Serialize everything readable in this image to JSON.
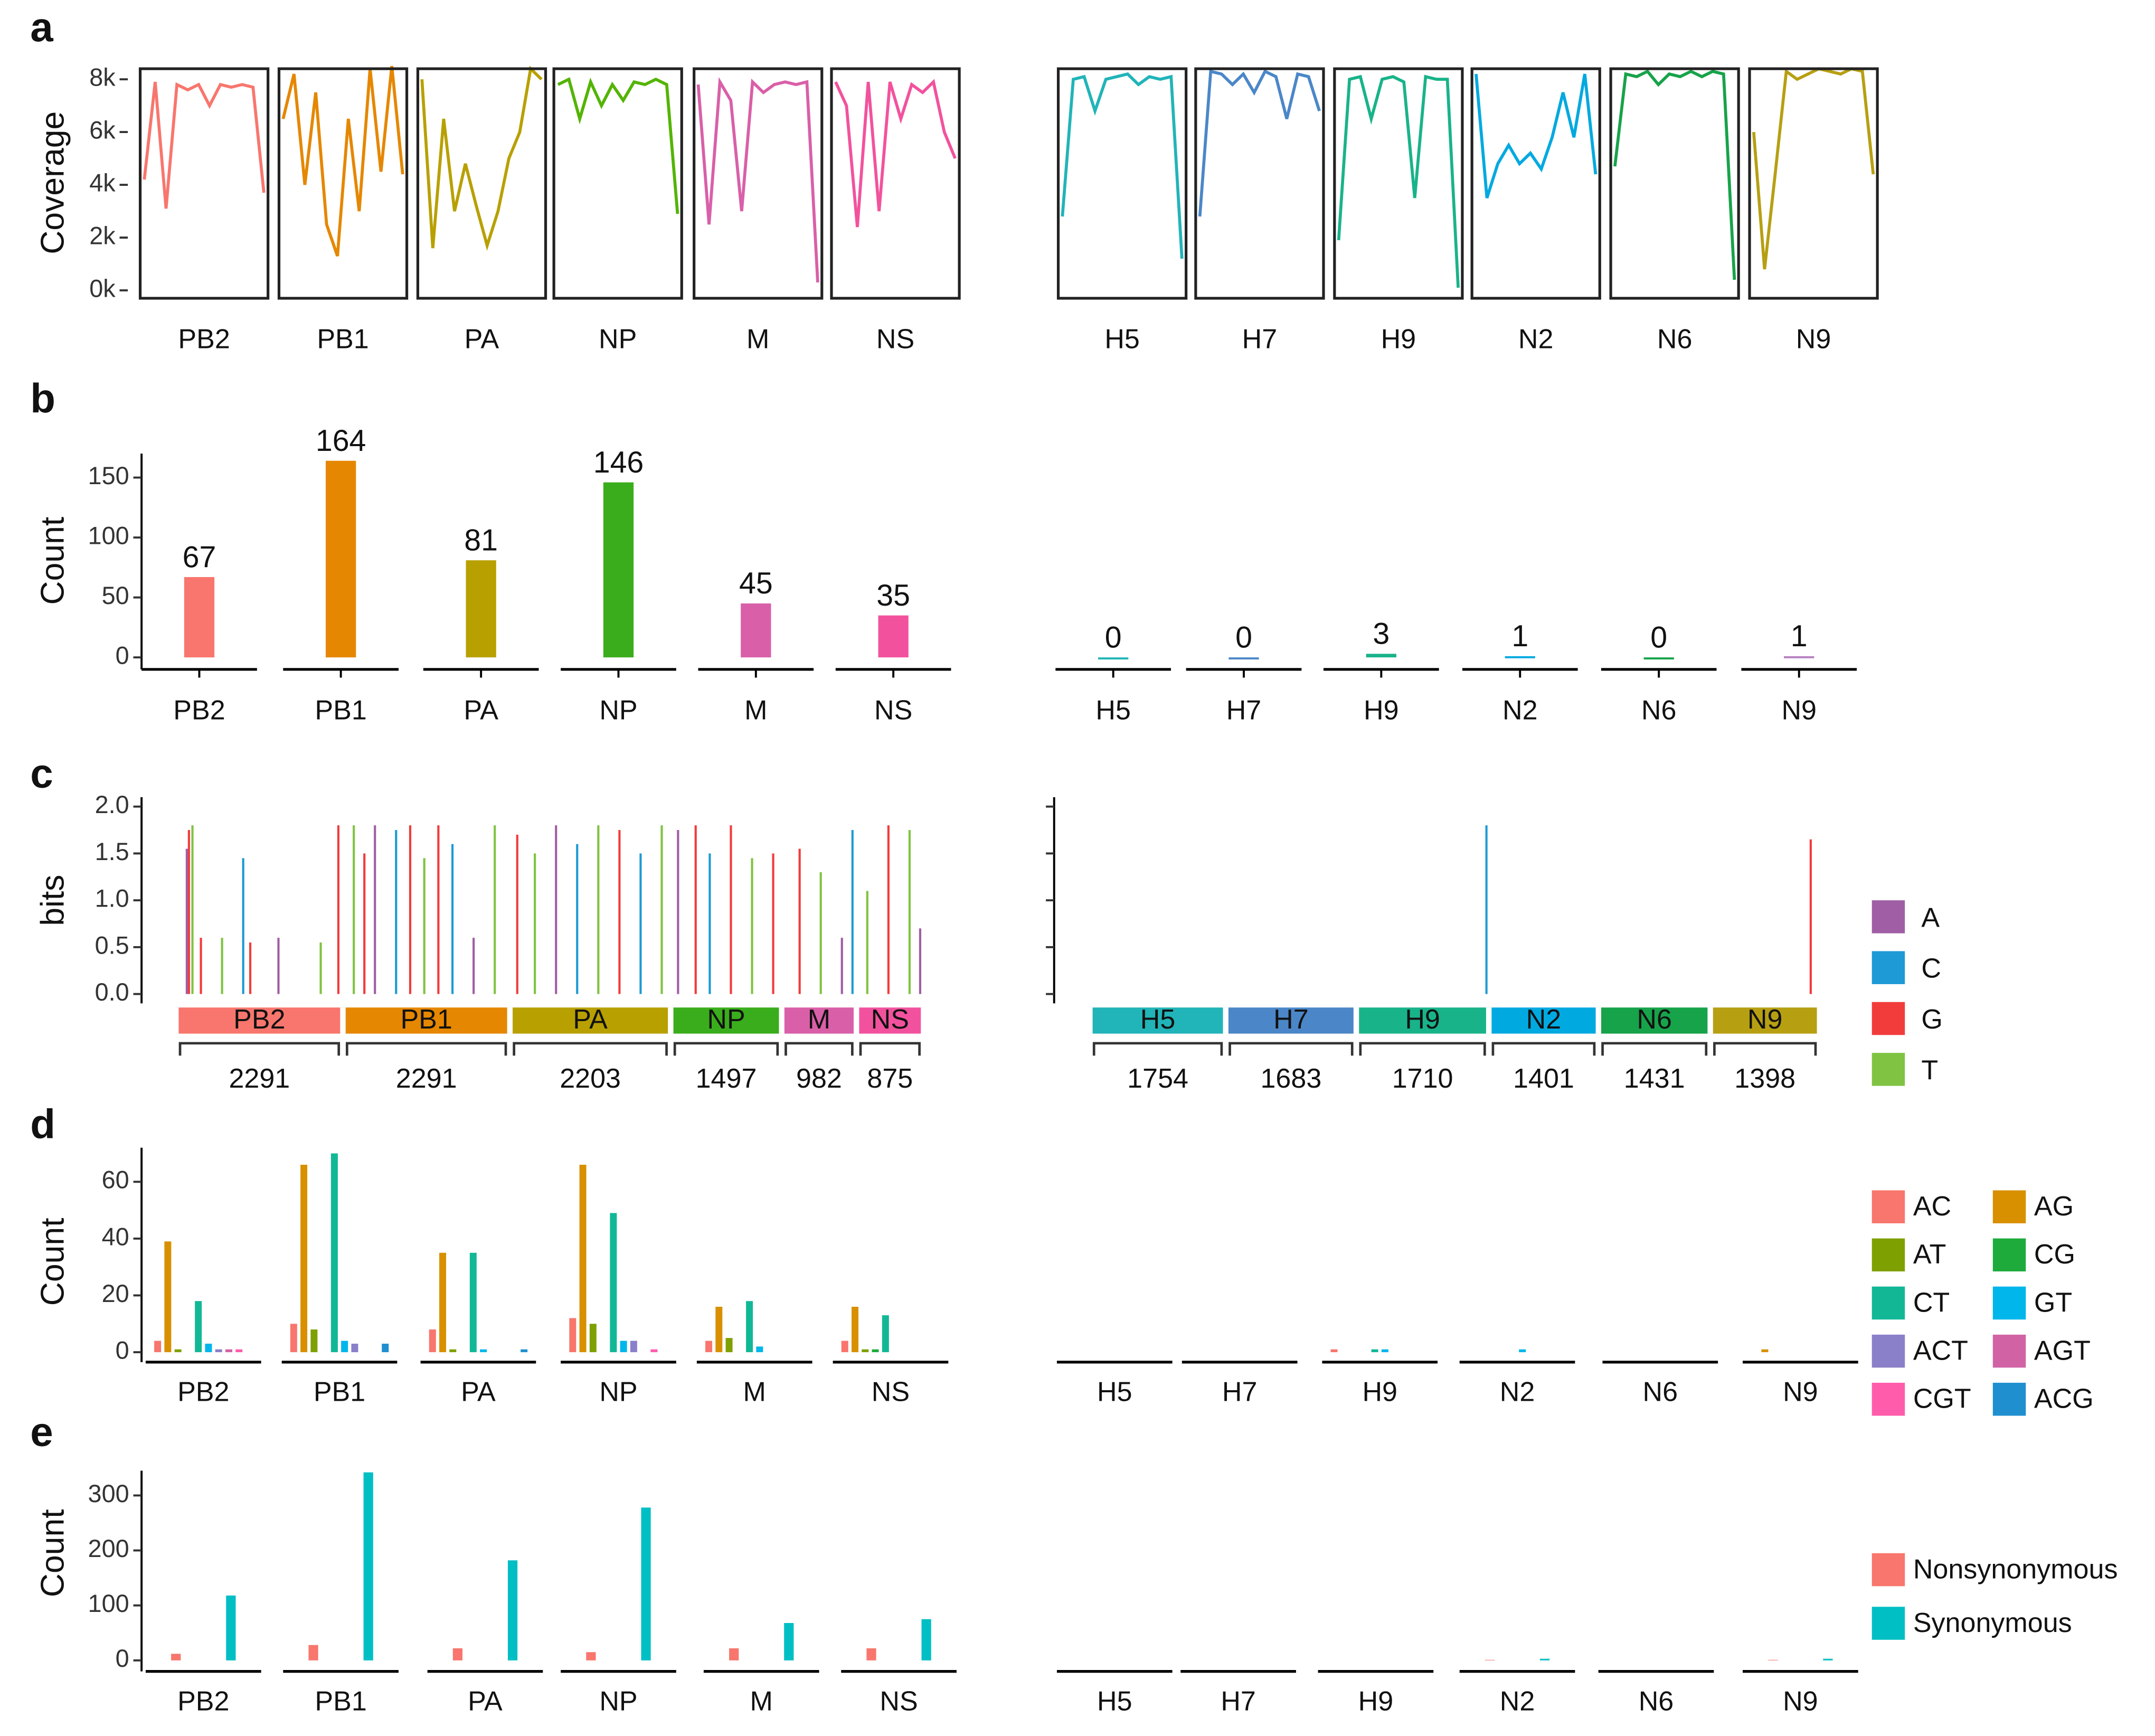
{
  "chart_data": [
    {
      "type": "line",
      "panel": "a",
      "ylabel": "Coverage",
      "ylim": [
        -300,
        8400
      ],
      "yticks": [
        {
          "value": 0,
          "label": "0k"
        },
        {
          "value": 2000,
          "label": "2k"
        },
        {
          "value": 4000,
          "label": "4k"
        },
        {
          "value": 6000,
          "label": "6k"
        },
        {
          "value": 8000,
          "label": "8k"
        }
      ],
      "series": [
        {
          "name": "PB2",
          "color": "#f8766d",
          "values": [
            4200,
            7900,
            3100,
            7800,
            7600,
            7800,
            7000,
            7800,
            7700,
            7800,
            7700,
            3700
          ]
        },
        {
          "name": "PB1",
          "color": "#e58700",
          "values": [
            6500,
            8200,
            4000,
            7500,
            2500,
            1300,
            6500,
            3000,
            8400,
            4500,
            8500,
            4400
          ]
        },
        {
          "name": "PA",
          "color": "#b8a000",
          "values": [
            8000,
            1600,
            6500,
            3000,
            4800,
            3200,
            1700,
            3000,
            5000,
            6000,
            8400,
            8000
          ]
        },
        {
          "name": "NP",
          "color": "#53b400",
          "values": [
            7800,
            8000,
            6500,
            7900,
            7000,
            7800,
            7200,
            7900,
            7800,
            8000,
            7800,
            2900
          ]
        },
        {
          "name": "M",
          "color": "#d95fa8",
          "values": [
            7800,
            2500,
            7900,
            7200,
            3000,
            7900,
            7500,
            7800,
            7900,
            7800,
            7900,
            300
          ]
        },
        {
          "name": "NS",
          "color": "#f2529d",
          "values": [
            7900,
            7000,
            2400,
            7900,
            3000,
            7900,
            6500,
            7800,
            7500,
            7900,
            6000,
            5000
          ]
        },
        {
          "name": "H5",
          "color": "#21b4b8",
          "values": [
            2800,
            8000,
            8100,
            6800,
            8000,
            8100,
            8200,
            7800,
            8100,
            8000,
            8100,
            1200
          ]
        },
        {
          "name": "H7",
          "color": "#4b87c8",
          "values": [
            2800,
            8300,
            8200,
            7800,
            8200,
            7500,
            8300,
            8100,
            6500,
            8200,
            8100,
            6800
          ]
        },
        {
          "name": "H9",
          "color": "#19b38a",
          "values": [
            1900,
            8000,
            8100,
            6500,
            8000,
            8100,
            7900,
            3500,
            8100,
            8000,
            8000,
            100
          ]
        },
        {
          "name": "N2",
          "color": "#00a9e0",
          "values": [
            8200,
            3500,
            4800,
            5500,
            4800,
            5200,
            4600,
            5800,
            7500,
            5800,
            8200,
            4400
          ]
        },
        {
          "name": "N6",
          "color": "#17a34a",
          "values": [
            4700,
            8200,
            8100,
            8300,
            7800,
            8200,
            8100,
            8300,
            8100,
            8300,
            8200,
            400
          ]
        },
        {
          "name": "N9",
          "color": "#b79f12",
          "values": [
            6000,
            800,
            4500,
            8300,
            8000,
            8200,
            8400,
            8300,
            8200,
            8400,
            8300,
            4400
          ]
        }
      ]
    },
    {
      "type": "bar",
      "panel": "b",
      "ylabel": "Count",
      "ylim": [
        -10,
        170
      ],
      "yticks": [
        0,
        50,
        100,
        150
      ],
      "categories": [
        "PB2",
        "PB1",
        "PA",
        "NP",
        "M",
        "NS",
        "H5",
        "H7",
        "H9",
        "N2",
        "N6",
        "N9"
      ],
      "values": [
        67,
        164,
        81,
        146,
        45,
        35,
        0,
        0,
        3,
        1,
        0,
        1
      ],
      "colors": [
        "#f8766d",
        "#e58700",
        "#b8a000",
        "#3aad1c",
        "#d95fa8",
        "#f2529d",
        "#21b4b8",
        "#4b87c8",
        "#19b38a",
        "#00a9e0",
        "#17a34a",
        "#b77fc0"
      ]
    },
    {
      "type": "logo",
      "panel": "c",
      "ylabel": "bits",
      "ylim": [
        -0.1,
        2.1
      ],
      "yticks": [
        {
          "value": 0,
          "label": "0.0"
        },
        {
          "value": 0.5,
          "label": "0.5"
        },
        {
          "value": 1,
          "label": "1.0"
        },
        {
          "value": 1.5,
          "label": "1.5"
        },
        {
          "value": 2,
          "label": "2.0"
        }
      ],
      "bases": [
        {
          "name": "A",
          "color": "#a05ea5"
        },
        {
          "name": "C",
          "color": "#1e9ad6"
        },
        {
          "name": "G",
          "color": "#f23c3c"
        },
        {
          "name": "T",
          "color": "#80c342"
        }
      ],
      "segments": [
        {
          "name": "PB2",
          "color": "#f8766d",
          "length": 2291,
          "sites": [
            [
              100,
              1.55,
              "A"
            ],
            [
              130,
              1.75,
              "G"
            ],
            [
              180,
              1.8,
              "T"
            ],
            [
              300,
              0.6,
              "G"
            ],
            [
              600,
              0.6,
              "T"
            ],
            [
              900,
              1.45,
              "C"
            ],
            [
              1000,
              0.55,
              "G"
            ],
            [
              1400,
              0.6,
              "A"
            ],
            [
              2000,
              0.55,
              "T"
            ],
            [
              2250,
              1.8,
              "G"
            ]
          ]
        },
        {
          "name": "PB1",
          "color": "#e58700",
          "length": 2291,
          "sites": [
            [
              100,
              1.8,
              "T"
            ],
            [
              250,
              1.5,
              "G"
            ],
            [
              400,
              1.8,
              "A"
            ],
            [
              700,
              1.75,
              "C"
            ],
            [
              900,
              1.8,
              "G"
            ],
            [
              1100,
              1.45,
              "T"
            ],
            [
              1300,
              1.8,
              "G"
            ],
            [
              1500,
              1.6,
              "C"
            ],
            [
              1800,
              0.6,
              "A"
            ],
            [
              2100,
              1.8,
              "T"
            ]
          ]
        },
        {
          "name": "PA",
          "color": "#b8a000",
          "length": 2203,
          "sites": [
            [
              50,
              1.7,
              "G"
            ],
            [
              300,
              1.5,
              "T"
            ],
            [
              600,
              1.8,
              "A"
            ],
            [
              900,
              1.6,
              "C"
            ],
            [
              1200,
              1.8,
              "T"
            ],
            [
              1500,
              1.75,
              "G"
            ],
            [
              1800,
              1.5,
              "C"
            ],
            [
              2100,
              1.8,
              "T"
            ]
          ]
        },
        {
          "name": "NP",
          "color": "#3aad1c",
          "length": 1497,
          "sites": [
            [
              50,
              1.75,
              "A"
            ],
            [
              300,
              1.8,
              "G"
            ],
            [
              500,
              1.5,
              "C"
            ],
            [
              800,
              1.8,
              "G"
            ],
            [
              1100,
              1.45,
              "T"
            ],
            [
              1400,
              1.5,
              "G"
            ]
          ]
        },
        {
          "name": "M",
          "color": "#d95fa8",
          "length": 982,
          "sites": [
            [
              200,
              1.55,
              "G"
            ],
            [
              500,
              1.3,
              "T"
            ],
            [
              800,
              0.6,
              "A"
            ],
            [
              950,
              1.75,
              "C"
            ]
          ]
        },
        {
          "name": "NS",
          "color": "#f2529d",
          "length": 875,
          "sites": [
            [
              100,
              1.1,
              "T"
            ],
            [
              400,
              1.8,
              "G"
            ],
            [
              700,
              1.75,
              "T"
            ],
            [
              850,
              0.7,
              "A"
            ]
          ]
        },
        {
          "name": "H5",
          "color": "#21b4b8",
          "length": 1754,
          "sites": []
        },
        {
          "name": "H7",
          "color": "#4b87c8",
          "length": 1683,
          "sites": []
        },
        {
          "name": "H9",
          "color": "#19b38a",
          "length": 1710,
          "sites": [
            [
              1700,
              1.8,
              "C"
            ]
          ]
        },
        {
          "name": "N2",
          "color": "#00a9e0",
          "length": 1401,
          "sites": []
        },
        {
          "name": "N6",
          "color": "#17a34a",
          "length": 1431,
          "sites": []
        },
        {
          "name": "N9",
          "color": "#b79f12",
          "length": 1398,
          "sites": [
            [
              1300,
              1.65,
              "G"
            ]
          ]
        }
      ]
    },
    {
      "type": "grouped_bar",
      "panel": "d",
      "ylabel": "Count",
      "ylim": [
        -3.5,
        72
      ],
      "yticks": [
        0,
        20,
        40,
        60
      ],
      "categories": [
        "PB2",
        "PB1",
        "PA",
        "NP",
        "M",
        "NS",
        "H5",
        "H7",
        "H9",
        "N2",
        "N6",
        "N9"
      ],
      "series": [
        {
          "name": "AC",
          "color": "#f8766d",
          "values": [
            4,
            10,
            8,
            12,
            4,
            4,
            0,
            0,
            1,
            0,
            0,
            0
          ]
        },
        {
          "name": "AG",
          "color": "#d89000",
          "values": [
            39,
            66,
            35,
            66,
            16,
            16,
            0,
            0,
            0,
            0,
            0,
            1
          ]
        },
        {
          "name": "AT",
          "color": "#7ea000",
          "values": [
            1,
            8,
            1,
            10,
            5,
            1,
            0,
            0,
            0,
            0,
            0,
            0
          ]
        },
        {
          "name": "CG",
          "color": "#1eab3c",
          "values": [
            0,
            0,
            0,
            0,
            0,
            1,
            0,
            0,
            0,
            0,
            0,
            0
          ]
        },
        {
          "name": "CT",
          "color": "#12b896",
          "values": [
            18,
            70,
            35,
            49,
            18,
            13,
            0,
            0,
            1,
            0,
            0,
            0
          ]
        },
        {
          "name": "GT",
          "color": "#00b6eb",
          "values": [
            3,
            4,
            1,
            4,
            2,
            0,
            0,
            0,
            1,
            1,
            0,
            0
          ]
        },
        {
          "name": "ACT",
          "color": "#8a7fc9",
          "values": [
            1,
            3,
            0,
            4,
            0,
            0,
            0,
            0,
            0,
            0,
            0,
            0
          ]
        },
        {
          "name": "AGT",
          "color": "#d163a5",
          "values": [
            1,
            0,
            0,
            0,
            0,
            0,
            0,
            0,
            0,
            0,
            0,
            0
          ]
        },
        {
          "name": "CGT",
          "color": "#ff5cac",
          "values": [
            1,
            0,
            0,
            1,
            0,
            0,
            0,
            0,
            0,
            0,
            0,
            0
          ]
        },
        {
          "name": "ACG",
          "color": "#1f8fcf",
          "values": [
            0,
            3,
            1,
            0,
            0,
            0,
            0,
            0,
            0,
            0,
            0,
            0
          ]
        }
      ]
    },
    {
      "type": "grouped_bar",
      "panel": "e",
      "ylabel": "Count",
      "ylim": [
        -20,
        345
      ],
      "yticks": [
        0,
        100,
        200,
        300
      ],
      "categories": [
        "PB2",
        "PB1",
        "PA",
        "NP",
        "M",
        "NS",
        "H5",
        "H7",
        "H9",
        "N2",
        "N6",
        "N9"
      ],
      "series": [
        {
          "name": "Nonsynonymous",
          "color": "#f8766d",
          "values": [
            12,
            28,
            22,
            15,
            22,
            22,
            0,
            0,
            0,
            1,
            0,
            1
          ]
        },
        {
          "name": "Synonymous",
          "color": "#00bfc4",
          "values": [
            118,
            342,
            182,
            278,
            68,
            75,
            0,
            0,
            0,
            3,
            0,
            3
          ]
        }
      ]
    }
  ]
}
